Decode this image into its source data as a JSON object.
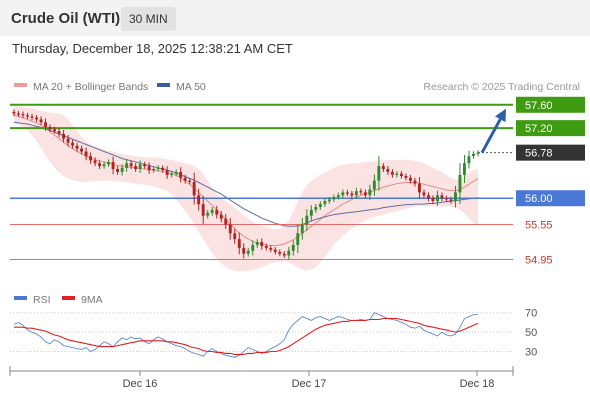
{
  "header": {
    "title": "Crude Oil (WTI)",
    "timeframe": "30 MIN"
  },
  "datetime": "Thursday, December 18, 2025 12:38:21 AM CET",
  "credit": "Research © 2025 Trading Central",
  "colors": {
    "resistance": "#3f9c12",
    "support": "#e56a6a",
    "pivot": "#4a78d6",
    "current": "#333333",
    "bollinger_fill": "#fcdede",
    "ma20": "#e88a8a",
    "ma50": "#5f6fa3",
    "up_candle": "#2e8b2e",
    "down_candle": "#b22222",
    "rsi": "#4a78d6",
    "rsi_ma": "#e02020",
    "arrow": "#2c5fa8"
  },
  "chart_data": [
    {
      "type": "candlestick",
      "legend": [
        {
          "name": "MA 20 + Bollinger Bands",
          "color": "#f29a9a"
        },
        {
          "name": "MA 50",
          "color": "#3b5c9e"
        }
      ],
      "x_labels": [
        "Dec 16",
        "Dec 17",
        "Dec 18"
      ],
      "ylim": [
        54.6,
        57.75
      ],
      "levels": [
        {
          "value": 57.6,
          "label": "57.60",
          "type": "resistance"
        },
        {
          "value": 57.2,
          "label": "57.20",
          "type": "resistance"
        },
        {
          "value": 56.78,
          "label": "56.78",
          "type": "current"
        },
        {
          "value": 56.0,
          "label": "56.00",
          "type": "pivot"
        },
        {
          "value": 55.55,
          "label": "55.55",
          "type": "support"
        },
        {
          "value": 54.95,
          "label": "54.95",
          "type": "support"
        }
      ],
      "close": [
        57.45,
        57.44,
        57.42,
        57.4,
        57.38,
        57.35,
        57.3,
        57.22,
        57.18,
        57.15,
        57.1,
        57.02,
        56.95,
        56.9,
        56.85,
        56.8,
        56.72,
        56.65,
        56.6,
        56.55,
        56.58,
        56.62,
        56.5,
        56.45,
        56.52,
        56.6,
        56.55,
        56.5,
        56.58,
        56.55,
        56.48,
        56.5,
        56.52,
        56.48,
        56.4,
        56.42,
        56.45,
        56.35,
        56.3,
        56.28,
        56.05,
        55.9,
        55.7,
        55.75,
        55.8,
        55.72,
        55.65,
        55.55,
        55.4,
        55.3,
        55.15,
        55.05,
        55.1,
        55.2,
        55.25,
        55.18,
        55.15,
        55.12,
        55.08,
        55.05,
        55.02,
        55.1,
        55.2,
        55.4,
        55.55,
        55.7,
        55.8,
        55.85,
        55.9,
        55.95,
        55.98,
        56.02,
        56.05,
        56.1,
        56.08,
        56.05,
        56.12,
        56.1,
        56.05,
        56.15,
        56.3,
        56.55,
        56.5,
        56.45,
        56.4,
        56.42,
        56.38,
        56.35,
        56.3,
        56.25,
        56.1,
        56.05,
        56.0,
        55.95,
        56.05,
        56.0,
        55.98,
        55.95,
        56.1,
        56.4,
        56.6,
        56.72,
        56.76,
        56.78
      ],
      "series": [
        {
          "name": "MA 20",
          "values": [
            57.42,
            57.4,
            57.38,
            57.35,
            57.32,
            57.29,
            57.25,
            57.2,
            57.14,
            57.08,
            57.02,
            56.96,
            56.9,
            56.85,
            56.8,
            56.76,
            56.72,
            56.69,
            56.66,
            56.64,
            56.62,
            56.6,
            56.58,
            56.56,
            56.55,
            56.54,
            56.53,
            56.52,
            56.51,
            56.5,
            56.49,
            56.48,
            56.47,
            56.46,
            56.44,
            56.42,
            56.39,
            56.35,
            56.3,
            56.24,
            56.17,
            56.1,
            56.02,
            55.95,
            55.88,
            55.8,
            55.72,
            55.64,
            55.56,
            55.48,
            55.41,
            55.35,
            55.3,
            55.26,
            55.23,
            55.21,
            55.2,
            55.19,
            55.19,
            55.2,
            55.22,
            55.25,
            55.29,
            55.34,
            55.4,
            55.46,
            55.52,
            55.58,
            55.64,
            55.7,
            55.75,
            55.8,
            55.85,
            55.9,
            55.94,
            55.98,
            56.02,
            56.05,
            56.08,
            56.1,
            56.13,
            56.16,
            56.19,
            56.21,
            56.23,
            56.25,
            56.26,
            56.27,
            56.27,
            56.27,
            56.26,
            56.24,
            56.22,
            56.2,
            56.18,
            56.16,
            56.14,
            56.13,
            56.13,
            56.15,
            56.19,
            56.24,
            56.29,
            56.34
          ]
        },
        {
          "name": "BB Upper",
          "values": [
            57.58,
            57.57,
            57.56,
            57.55,
            57.54,
            57.52,
            57.5,
            57.48,
            57.47,
            57.46,
            57.45,
            57.42,
            57.35,
            57.25,
            57.15,
            57.05,
            56.98,
            56.92,
            56.88,
            56.86,
            56.84,
            56.82,
            56.8,
            56.78,
            56.76,
            56.74,
            56.73,
            56.72,
            56.71,
            56.7,
            56.7,
            56.7,
            56.69,
            56.68,
            56.67,
            56.66,
            56.64,
            56.62,
            56.6,
            56.58,
            56.55,
            56.5,
            56.42,
            56.3,
            56.18,
            56.07,
            56.0,
            55.95,
            55.9,
            55.84,
            55.78,
            55.72,
            55.66,
            55.6,
            55.55,
            55.52,
            55.5,
            55.48,
            55.47,
            55.48,
            55.52,
            55.62,
            55.78,
            55.95,
            56.1,
            56.22,
            56.3,
            56.36,
            56.4,
            56.44,
            56.48,
            56.52,
            56.55,
            56.57,
            56.58,
            56.59,
            56.6,
            56.61,
            56.62,
            56.62,
            56.63,
            56.64,
            56.65,
            56.66,
            56.66,
            56.66,
            56.66,
            56.66,
            56.65,
            56.64,
            56.62,
            56.6,
            56.56,
            56.52,
            56.48,
            56.45,
            56.4,
            56.35,
            56.32,
            56.33,
            56.38,
            56.45,
            56.48,
            56.5
          ]
        },
        {
          "name": "BB Lower",
          "values": [
            57.28,
            57.26,
            57.22,
            57.16,
            57.08,
            56.98,
            56.86,
            56.74,
            56.62,
            56.52,
            56.44,
            56.38,
            56.34,
            56.31,
            56.29,
            56.28,
            56.28,
            56.28,
            56.29,
            56.3,
            56.3,
            56.3,
            56.3,
            56.29,
            56.28,
            56.27,
            56.26,
            56.25,
            56.24,
            56.23,
            56.22,
            56.2,
            56.18,
            56.15,
            56.12,
            56.06,
            55.98,
            55.88,
            55.78,
            55.68,
            55.56,
            55.42,
            55.3,
            55.18,
            55.06,
            54.96,
            54.88,
            54.82,
            54.78,
            54.76,
            54.75,
            54.75,
            54.76,
            54.77,
            54.79,
            54.82,
            54.85,
            54.88,
            54.9,
            54.91,
            54.92,
            54.9,
            54.86,
            54.82,
            54.78,
            54.76,
            54.78,
            54.82,
            54.9,
            55.0,
            55.1,
            55.2,
            55.28,
            55.36,
            55.42,
            55.48,
            55.54,
            55.58,
            55.62,
            55.66,
            55.68,
            55.7,
            55.72,
            55.74,
            55.76,
            55.78,
            55.8,
            55.82,
            55.84,
            55.86,
            55.86,
            55.86,
            55.86,
            55.86,
            55.86,
            55.86,
            55.86,
            55.86,
            55.84,
            55.8,
            55.74,
            55.66,
            55.58,
            55.52
          ]
        },
        {
          "name": "MA 50",
          "values": [
            57.3,
            57.29,
            57.28,
            57.27,
            57.25,
            57.23,
            57.21,
            57.19,
            57.16,
            57.13,
            57.1,
            57.07,
            57.04,
            57.01,
            56.98,
            56.95,
            56.92,
            56.89,
            56.86,
            56.83,
            56.8,
            56.77,
            56.74,
            56.71,
            56.68,
            56.66,
            56.64,
            56.62,
            56.6,
            56.58,
            56.56,
            56.54,
            56.52,
            56.5,
            56.48,
            56.46,
            56.43,
            56.4,
            56.37,
            56.34,
            56.31,
            56.27,
            56.23,
            56.19,
            56.15,
            56.11,
            56.07,
            56.02,
            55.97,
            55.92,
            55.87,
            55.82,
            55.78,
            55.74,
            55.7,
            55.66,
            55.63,
            55.6,
            55.57,
            55.55,
            55.53,
            55.52,
            55.52,
            55.53,
            55.55,
            55.58,
            55.61,
            55.64,
            55.66,
            55.68,
            55.7,
            55.72,
            55.73,
            55.74,
            55.75,
            55.76,
            55.77,
            55.78,
            55.79,
            55.8,
            55.81,
            55.82,
            55.84,
            55.85,
            55.86,
            55.87,
            55.88,
            55.89,
            55.89,
            55.9,
            55.9,
            55.9,
            55.91,
            55.91,
            55.92,
            55.93,
            55.94,
            55.95,
            55.96,
            55.97,
            55.98,
            55.99,
            56.0,
            56.01
          ]
        }
      ]
    },
    {
      "type": "line",
      "legend": [
        {
          "name": "RSI",
          "color": "#4a78d6"
        },
        {
          "name": "9MA",
          "color": "#e02020"
        }
      ],
      "ylim": [
        15,
        80
      ],
      "y_ticks": [
        70,
        50,
        30
      ],
      "series": [
        {
          "name": "RSI",
          "values": [
            58,
            60,
            57,
            52,
            50,
            48,
            45,
            40,
            38,
            42,
            40,
            36,
            35,
            34,
            33,
            32,
            34,
            30,
            32,
            36,
            40,
            38,
            35,
            40,
            44,
            42,
            45,
            43,
            44,
            40,
            38,
            42,
            45,
            43,
            40,
            38,
            36,
            35,
            33,
            30,
            28,
            27,
            25,
            30,
            33,
            30,
            28,
            26,
            25,
            24,
            26,
            30,
            34,
            32,
            30,
            28,
            30,
            33,
            35,
            38,
            42,
            52,
            58,
            62,
            66,
            64,
            62,
            65,
            66,
            64,
            62,
            64,
            66,
            65,
            63,
            62,
            62,
            63,
            62,
            63,
            70,
            68,
            66,
            64,
            63,
            62,
            60,
            58,
            55,
            54,
            56,
            52,
            50,
            48,
            46,
            50,
            47,
            46,
            48,
            55,
            64,
            66,
            68,
            68
          ]
        },
        {
          "name": "9MA",
          "values": [
            55,
            55,
            55,
            54,
            54,
            53,
            52,
            51,
            49,
            47,
            46,
            44,
            42,
            41,
            40,
            39,
            38,
            37,
            36,
            35,
            35,
            35,
            35,
            36,
            37,
            38,
            39,
            40,
            41,
            41,
            41,
            41,
            41,
            41,
            40,
            40,
            39,
            38,
            37,
            35,
            34,
            33,
            31,
            30,
            30,
            29,
            29,
            28,
            28,
            27,
            27,
            27,
            28,
            28,
            29,
            29,
            29,
            30,
            30,
            31,
            33,
            35,
            38,
            41,
            44,
            47,
            50,
            53,
            55,
            57,
            58,
            59,
            60,
            61,
            61,
            62,
            62,
            62,
            62,
            63,
            63,
            63,
            64,
            64,
            64,
            64,
            63,
            62,
            61,
            60,
            59,
            57,
            56,
            55,
            54,
            53,
            52,
            51,
            50,
            51,
            53,
            55,
            57,
            59
          ]
        }
      ]
    }
  ]
}
